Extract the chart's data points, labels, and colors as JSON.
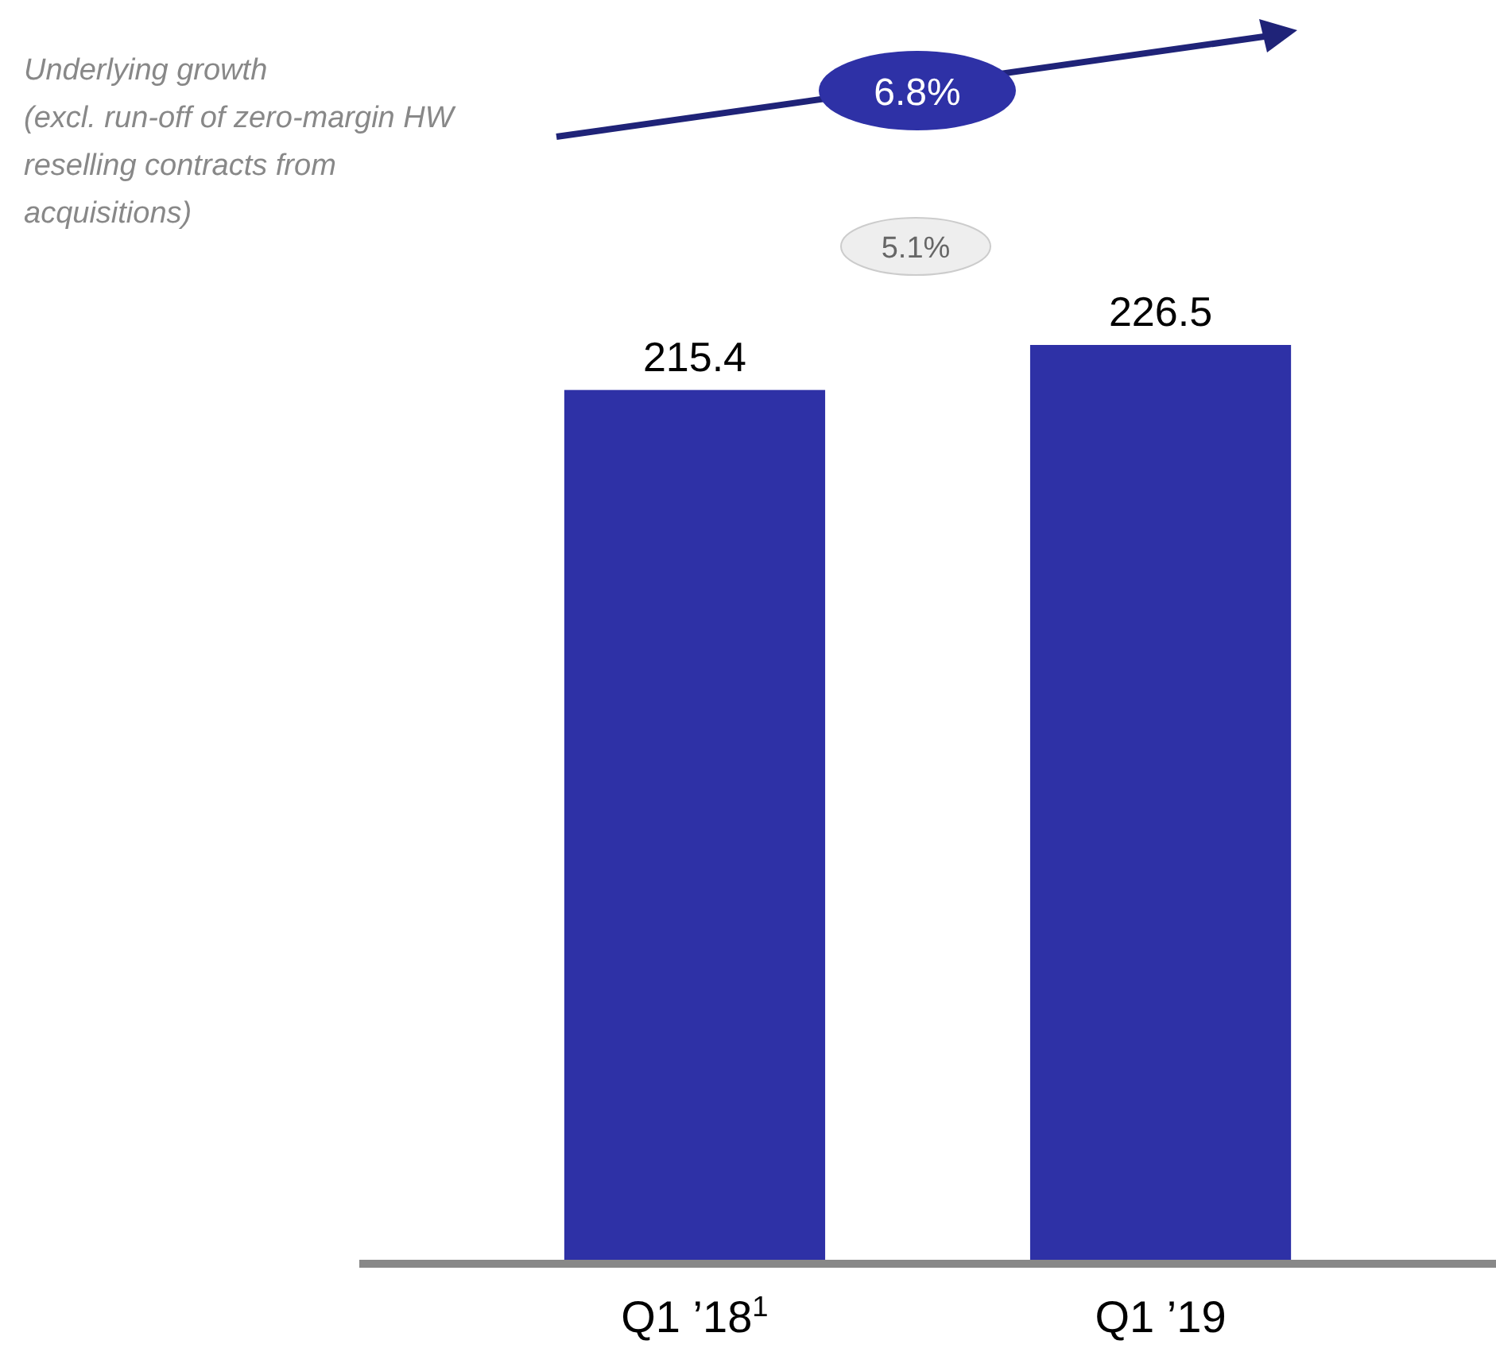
{
  "chart_data": {
    "type": "bar",
    "categories": [
      "Q1 ’18$^{1}$",
      "Q1 ’19"
    ],
    "values": [
      215.4,
      226.5
    ],
    "color": "#2e31a6",
    "data_labels": true,
    "annotations": [
      "Underlying growth\n(excl. run-off of zero-margin HW reselling contracts from acquisitions)",
      "6.8%",
      "5.1%"
    ]
  }
}
